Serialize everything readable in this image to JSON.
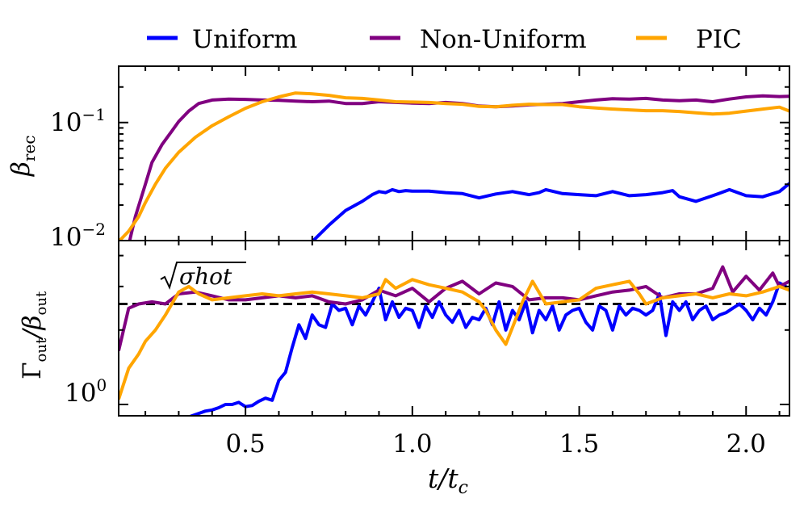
{
  "legend": [
    {
      "name": "Uniform",
      "color": "#0000ff"
    },
    {
      "name": "Non-Uniform",
      "color": "#800080"
    },
    {
      "name": "PIC",
      "color": "#ffa500"
    }
  ],
  "xaxis": {
    "label_main": "t/t",
    "label_sub": "c",
    "ticks": [
      0.5,
      1.0,
      1.5,
      2.0
    ],
    "tick_labels": [
      "0.5",
      "1.0",
      "1.5",
      "2.0"
    ],
    "range": [
      0.12,
      2.13
    ]
  },
  "chart_data": [
    {
      "type": "line",
      "panel": "top",
      "ylabel_main": "β",
      "ylabel_sub": "rec",
      "yscale": "log",
      "ylim": [
        0.01,
        0.3
      ],
      "ytick_labels": [
        {
          "base": "10",
          "exp": "−1",
          "value": 0.1
        },
        {
          "base": "10",
          "exp": "−2",
          "value": 0.01
        }
      ],
      "series": [
        {
          "name": "Uniform",
          "color": "#0000ff",
          "x": [
            0.7,
            0.75,
            0.8,
            0.85,
            0.88,
            0.9,
            0.92,
            0.94,
            0.96,
            0.98,
            1.0,
            1.05,
            1.1,
            1.15,
            1.2,
            1.25,
            1.3,
            1.35,
            1.38,
            1.4,
            1.45,
            1.5,
            1.55,
            1.6,
            1.65,
            1.7,
            1.75,
            1.78,
            1.8,
            1.85,
            1.9,
            1.95,
            2.0,
            2.05,
            2.1,
            2.13
          ],
          "y": [
            0.0098,
            0.0135,
            0.018,
            0.0215,
            0.0245,
            0.026,
            0.0255,
            0.027,
            0.026,
            0.0265,
            0.0262,
            0.0262,
            0.0255,
            0.025,
            0.023,
            0.0248,
            0.026,
            0.0245,
            0.0255,
            0.027,
            0.025,
            0.0245,
            0.024,
            0.026,
            0.024,
            0.0245,
            0.0255,
            0.0265,
            0.0235,
            0.0215,
            0.024,
            0.027,
            0.024,
            0.0235,
            0.026,
            0.0305
          ]
        },
        {
          "name": "Non-Uniform",
          "color": "#800080",
          "x": [
            0.15,
            0.17,
            0.2,
            0.22,
            0.25,
            0.28,
            0.3,
            0.33,
            0.36,
            0.4,
            0.45,
            0.5,
            0.55,
            0.6,
            0.65,
            0.7,
            0.75,
            0.8,
            0.85,
            0.9,
            0.95,
            1.0,
            1.05,
            1.1,
            1.15,
            1.2,
            1.25,
            1.3,
            1.35,
            1.4,
            1.45,
            1.5,
            1.55,
            1.6,
            1.65,
            1.7,
            1.75,
            1.8,
            1.85,
            1.88,
            1.9,
            1.95,
            2.0,
            2.05,
            2.1,
            2.13
          ],
          "y": [
            0.0092,
            0.016,
            0.03,
            0.046,
            0.065,
            0.085,
            0.102,
            0.125,
            0.145,
            0.155,
            0.158,
            0.157,
            0.155,
            0.154,
            0.152,
            0.15,
            0.152,
            0.145,
            0.145,
            0.15,
            0.148,
            0.146,
            0.145,
            0.148,
            0.145,
            0.138,
            0.136,
            0.138,
            0.141,
            0.143,
            0.145,
            0.15,
            0.155,
            0.159,
            0.158,
            0.16,
            0.155,
            0.153,
            0.155,
            0.152,
            0.15,
            0.158,
            0.165,
            0.168,
            0.166,
            0.167
          ]
        },
        {
          "name": "PIC",
          "color": "#ffa500",
          "x": [
            0.12,
            0.15,
            0.18,
            0.2,
            0.23,
            0.26,
            0.3,
            0.35,
            0.4,
            0.45,
            0.5,
            0.55,
            0.6,
            0.65,
            0.7,
            0.75,
            0.8,
            0.85,
            0.9,
            0.95,
            1.0,
            1.05,
            1.1,
            1.15,
            1.2,
            1.25,
            1.3,
            1.35,
            1.4,
            1.45,
            1.5,
            1.55,
            1.6,
            1.65,
            1.7,
            1.75,
            1.8,
            1.85,
            1.9,
            1.95,
            2.0,
            2.05,
            2.1,
            2.13
          ],
          "y": [
            0.0098,
            0.012,
            0.016,
            0.021,
            0.03,
            0.041,
            0.056,
            0.075,
            0.094,
            0.112,
            0.132,
            0.15,
            0.165,
            0.178,
            0.175,
            0.17,
            0.162,
            0.16,
            0.155,
            0.15,
            0.149,
            0.148,
            0.145,
            0.143,
            0.137,
            0.136,
            0.14,
            0.143,
            0.142,
            0.142,
            0.136,
            0.133,
            0.13,
            0.128,
            0.126,
            0.126,
            0.124,
            0.121,
            0.118,
            0.12,
            0.125,
            0.13,
            0.135,
            0.125
          ]
        }
      ]
    },
    {
      "type": "line",
      "panel": "bottom",
      "ylabel_main": "Γ",
      "ylabel_mid": "β",
      "ylabel_sub1": "out",
      "ylabel_sub2": "out",
      "yscale": "log",
      "ylim": [
        0.9,
        4.6
      ],
      "ytick_labels": [
        {
          "base": "10",
          "exp": "0",
          "value": 1.0
        }
      ],
      "reference_line": {
        "value": 2.55,
        "style": "dashed",
        "color": "#000000",
        "label": "σhot"
      },
      "series": [
        {
          "name": "Uniform",
          "color": "#0000ff",
          "x": [
            0.32,
            0.34,
            0.36,
            0.38,
            0.4,
            0.42,
            0.44,
            0.46,
            0.48,
            0.5,
            0.52,
            0.54,
            0.56,
            0.58,
            0.6,
            0.62,
            0.64,
            0.66,
            0.68,
            0.7,
            0.72,
            0.74,
            0.76,
            0.78,
            0.8,
            0.82,
            0.84,
            0.86,
            0.88,
            0.9,
            0.92,
            0.94,
            0.96,
            0.98,
            1.0,
            1.02,
            1.04,
            1.06,
            1.08,
            1.1,
            1.12,
            1.14,
            1.16,
            1.18,
            1.2,
            1.22,
            1.24,
            1.26,
            1.28,
            1.3,
            1.32,
            1.34,
            1.36,
            1.38,
            1.4,
            1.42,
            1.44,
            1.46,
            1.48,
            1.5,
            1.52,
            1.54,
            1.56,
            1.58,
            1.6,
            1.62,
            1.64,
            1.66,
            1.68,
            1.7,
            1.72,
            1.74,
            1.76,
            1.78,
            1.8,
            1.82,
            1.84,
            1.86,
            1.88,
            1.9,
            1.92,
            1.94,
            1.96,
            1.98,
            2.0,
            2.02,
            2.04,
            2.06,
            2.08,
            2.1,
            2.12
          ],
          "y": [
            0.88,
            0.9,
            0.92,
            0.94,
            0.95,
            0.97,
            1.0,
            1.0,
            1.02,
            0.98,
            0.99,
            1.03,
            1.06,
            1.04,
            1.25,
            1.35,
            1.7,
            2.1,
            1.85,
            2.3,
            2.1,
            2.05,
            2.55,
            2.4,
            2.45,
            2.1,
            2.5,
            2.3,
            2.6,
            2.95,
            2.2,
            2.6,
            2.25,
            2.45,
            2.4,
            2.05,
            2.5,
            2.25,
            2.6,
            2.3,
            2.15,
            2.4,
            2.05,
            2.25,
            2.2,
            2.45,
            2.1,
            2.6,
            2.0,
            2.4,
            2.2,
            2.6,
            1.95,
            2.4,
            2.2,
            2.5,
            2.0,
            2.3,
            2.4,
            2.45,
            2.15,
            2.0,
            2.5,
            2.4,
            2.0,
            2.5,
            2.3,
            2.45,
            2.4,
            2.3,
            2.4,
            2.8,
            1.9,
            2.6,
            2.4,
            2.6,
            2.2,
            2.4,
            2.5,
            2.2,
            2.3,
            2.35,
            2.45,
            2.55,
            2.4,
            2.2,
            2.45,
            2.3,
            2.6,
            3.1,
            3.0
          ]
        },
        {
          "name": "Non-Uniform",
          "color": "#800080",
          "x": [
            0.12,
            0.15,
            0.18,
            0.22,
            0.26,
            0.3,
            0.35,
            0.4,
            0.45,
            0.5,
            0.55,
            0.6,
            0.65,
            0.7,
            0.75,
            0.8,
            0.85,
            0.9,
            0.95,
            1.0,
            1.05,
            1.1,
            1.15,
            1.2,
            1.25,
            1.3,
            1.35,
            1.4,
            1.45,
            1.5,
            1.55,
            1.6,
            1.65,
            1.7,
            1.75,
            1.8,
            1.85,
            1.9,
            1.93,
            1.96,
            2.0,
            2.04,
            2.08,
            2.1,
            2.13
          ],
          "y": [
            1.65,
            2.45,
            2.55,
            2.6,
            2.55,
            2.8,
            2.85,
            2.75,
            2.65,
            2.65,
            2.7,
            2.75,
            2.7,
            2.75,
            2.6,
            2.55,
            2.65,
            2.9,
            2.75,
            2.95,
            2.6,
            2.95,
            3.15,
            2.8,
            3.1,
            3.0,
            2.65,
            2.7,
            2.7,
            2.65,
            2.75,
            2.85,
            2.9,
            3.0,
            2.7,
            2.8,
            2.8,
            2.95,
            3.6,
            2.85,
            3.3,
            2.9,
            3.4,
            3.0,
            3.15
          ]
        },
        {
          "name": "PIC",
          "color": "#ffa500",
          "x": [
            0.12,
            0.15,
            0.18,
            0.2,
            0.23,
            0.26,
            0.3,
            0.33,
            0.36,
            0.4,
            0.45,
            0.5,
            0.55,
            0.6,
            0.65,
            0.7,
            0.75,
            0.8,
            0.85,
            0.9,
            0.92,
            0.95,
            1.0,
            1.05,
            1.1,
            1.15,
            1.2,
            1.22,
            1.25,
            1.28,
            1.3,
            1.33,
            1.36,
            1.4,
            1.45,
            1.5,
            1.55,
            1.6,
            1.65,
            1.68,
            1.7,
            1.75,
            1.8,
            1.85,
            1.9,
            1.95,
            2.0,
            2.05,
            2.1,
            2.13
          ],
          "y": [
            1.05,
            1.4,
            1.6,
            1.8,
            2.0,
            2.3,
            2.85,
            3.0,
            2.8,
            2.65,
            2.7,
            2.75,
            2.8,
            2.75,
            2.8,
            2.85,
            2.8,
            2.75,
            2.7,
            2.8,
            3.2,
            2.95,
            3.2,
            3.05,
            2.95,
            2.85,
            2.6,
            2.4,
            2.0,
            1.75,
            2.05,
            2.6,
            3.15,
            2.55,
            2.6,
            2.65,
            2.95,
            3.05,
            3.15,
            2.8,
            2.55,
            2.7,
            2.75,
            2.8,
            2.7,
            2.8,
            2.75,
            2.85,
            3.0,
            2.9
          ]
        }
      ]
    }
  ]
}
